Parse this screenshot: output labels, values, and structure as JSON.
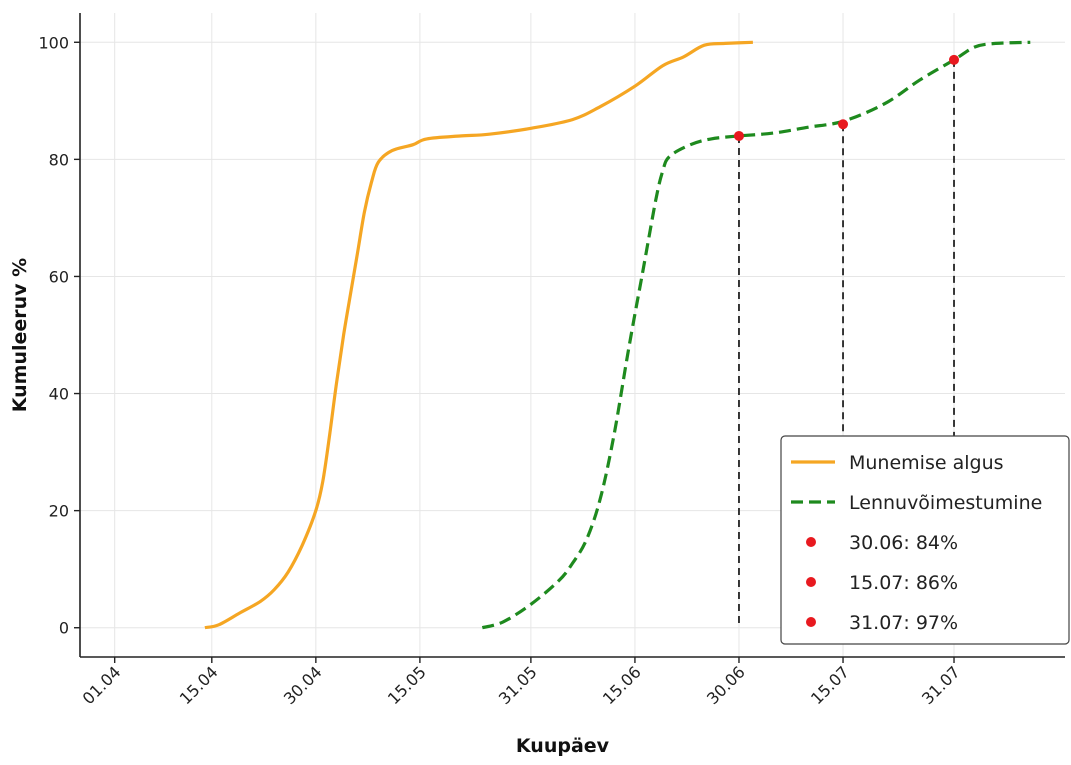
{
  "chart_data": {
    "type": "line",
    "xlabel": "Kuupäev",
    "ylabel": "Kumuleeruv %",
    "x_axis": {
      "tick_labels": [
        "01.04",
        "15.04",
        "30.04",
        "15.05",
        "31.05",
        "15.06",
        "30.06",
        "15.07",
        "31.07"
      ],
      "tick_dates": [
        "2024-04-01",
        "2024-04-15",
        "2024-04-30",
        "2024-05-15",
        "2024-05-31",
        "2024-06-15",
        "2024-06-30",
        "2024-07-15",
        "2024-07-31"
      ],
      "range": [
        "2024-03-27",
        "2024-08-16"
      ]
    },
    "y_axis": {
      "ticks": [
        0,
        20,
        40,
        60,
        80,
        100
      ],
      "range": [
        -5,
        105
      ]
    },
    "grid": true,
    "legend_position": "bottom-right",
    "series": [
      {
        "name": "Munemise algus",
        "color": "#f5a623",
        "style": "solid",
        "points": [
          [
            "2024-04-14",
            0
          ],
          [
            "2024-04-16",
            0.5
          ],
          [
            "2024-04-19",
            2.5
          ],
          [
            "2024-04-22",
            4.5
          ],
          [
            "2024-04-24",
            6.5
          ],
          [
            "2024-04-26",
            9.5
          ],
          [
            "2024-04-28",
            14
          ],
          [
            "2024-04-30",
            20
          ],
          [
            "2024-05-01",
            25
          ],
          [
            "2024-05-02",
            33
          ],
          [
            "2024-05-03",
            42
          ],
          [
            "2024-05-04",
            50
          ],
          [
            "2024-05-05",
            57
          ],
          [
            "2024-05-06",
            64
          ],
          [
            "2024-05-07",
            71
          ],
          [
            "2024-05-08",
            76
          ],
          [
            "2024-05-09",
            79.5
          ],
          [
            "2024-05-11",
            81.5
          ],
          [
            "2024-05-14",
            82.5
          ],
          [
            "2024-05-16",
            83.5
          ],
          [
            "2024-05-21",
            84
          ],
          [
            "2024-05-25",
            84.3
          ],
          [
            "2024-05-31",
            85.3
          ],
          [
            "2024-06-06",
            86.8
          ],
          [
            "2024-06-10",
            89
          ],
          [
            "2024-06-15",
            92.5
          ],
          [
            "2024-06-19",
            96
          ],
          [
            "2024-06-22",
            97.5
          ],
          [
            "2024-06-25",
            99.5
          ],
          [
            "2024-06-28",
            99.8
          ],
          [
            "2024-07-02",
            100
          ]
        ]
      },
      {
        "name": "Lennuvõimestumine",
        "color": "#1e8a1e",
        "style": "dashed",
        "points": [
          [
            "2024-05-24",
            0
          ],
          [
            "2024-05-27",
            1
          ],
          [
            "2024-05-31",
            4
          ],
          [
            "2024-06-04",
            8
          ],
          [
            "2024-06-06",
            11
          ],
          [
            "2024-06-08",
            15
          ],
          [
            "2024-06-10",
            22
          ],
          [
            "2024-06-12",
            33
          ],
          [
            "2024-06-14",
            47
          ],
          [
            "2024-06-16",
            60
          ],
          [
            "2024-06-18",
            73
          ],
          [
            "2024-06-19",
            78
          ],
          [
            "2024-06-20",
            80.5
          ],
          [
            "2024-06-23",
            82.5
          ],
          [
            "2024-06-26",
            83.5
          ],
          [
            "2024-06-30",
            84
          ],
          [
            "2024-07-05",
            84.5
          ],
          [
            "2024-07-10",
            85.5
          ],
          [
            "2024-07-15",
            86.5
          ],
          [
            "2024-07-21",
            89.5
          ],
          [
            "2024-07-26",
            93.5
          ],
          [
            "2024-07-31",
            97
          ],
          [
            "2024-08-03",
            99.2
          ],
          [
            "2024-08-06",
            99.8
          ],
          [
            "2024-08-11",
            100
          ]
        ]
      }
    ],
    "markers": [
      {
        "date": "2024-06-30",
        "value": 84,
        "label": "30.06: 84%",
        "color": "#e8191f"
      },
      {
        "date": "2024-07-15",
        "value": 86,
        "label": "15.07: 86%",
        "color": "#e8191f"
      },
      {
        "date": "2024-07-31",
        "value": 97,
        "label": "31.07: 97%",
        "color": "#e8191f"
      }
    ]
  }
}
